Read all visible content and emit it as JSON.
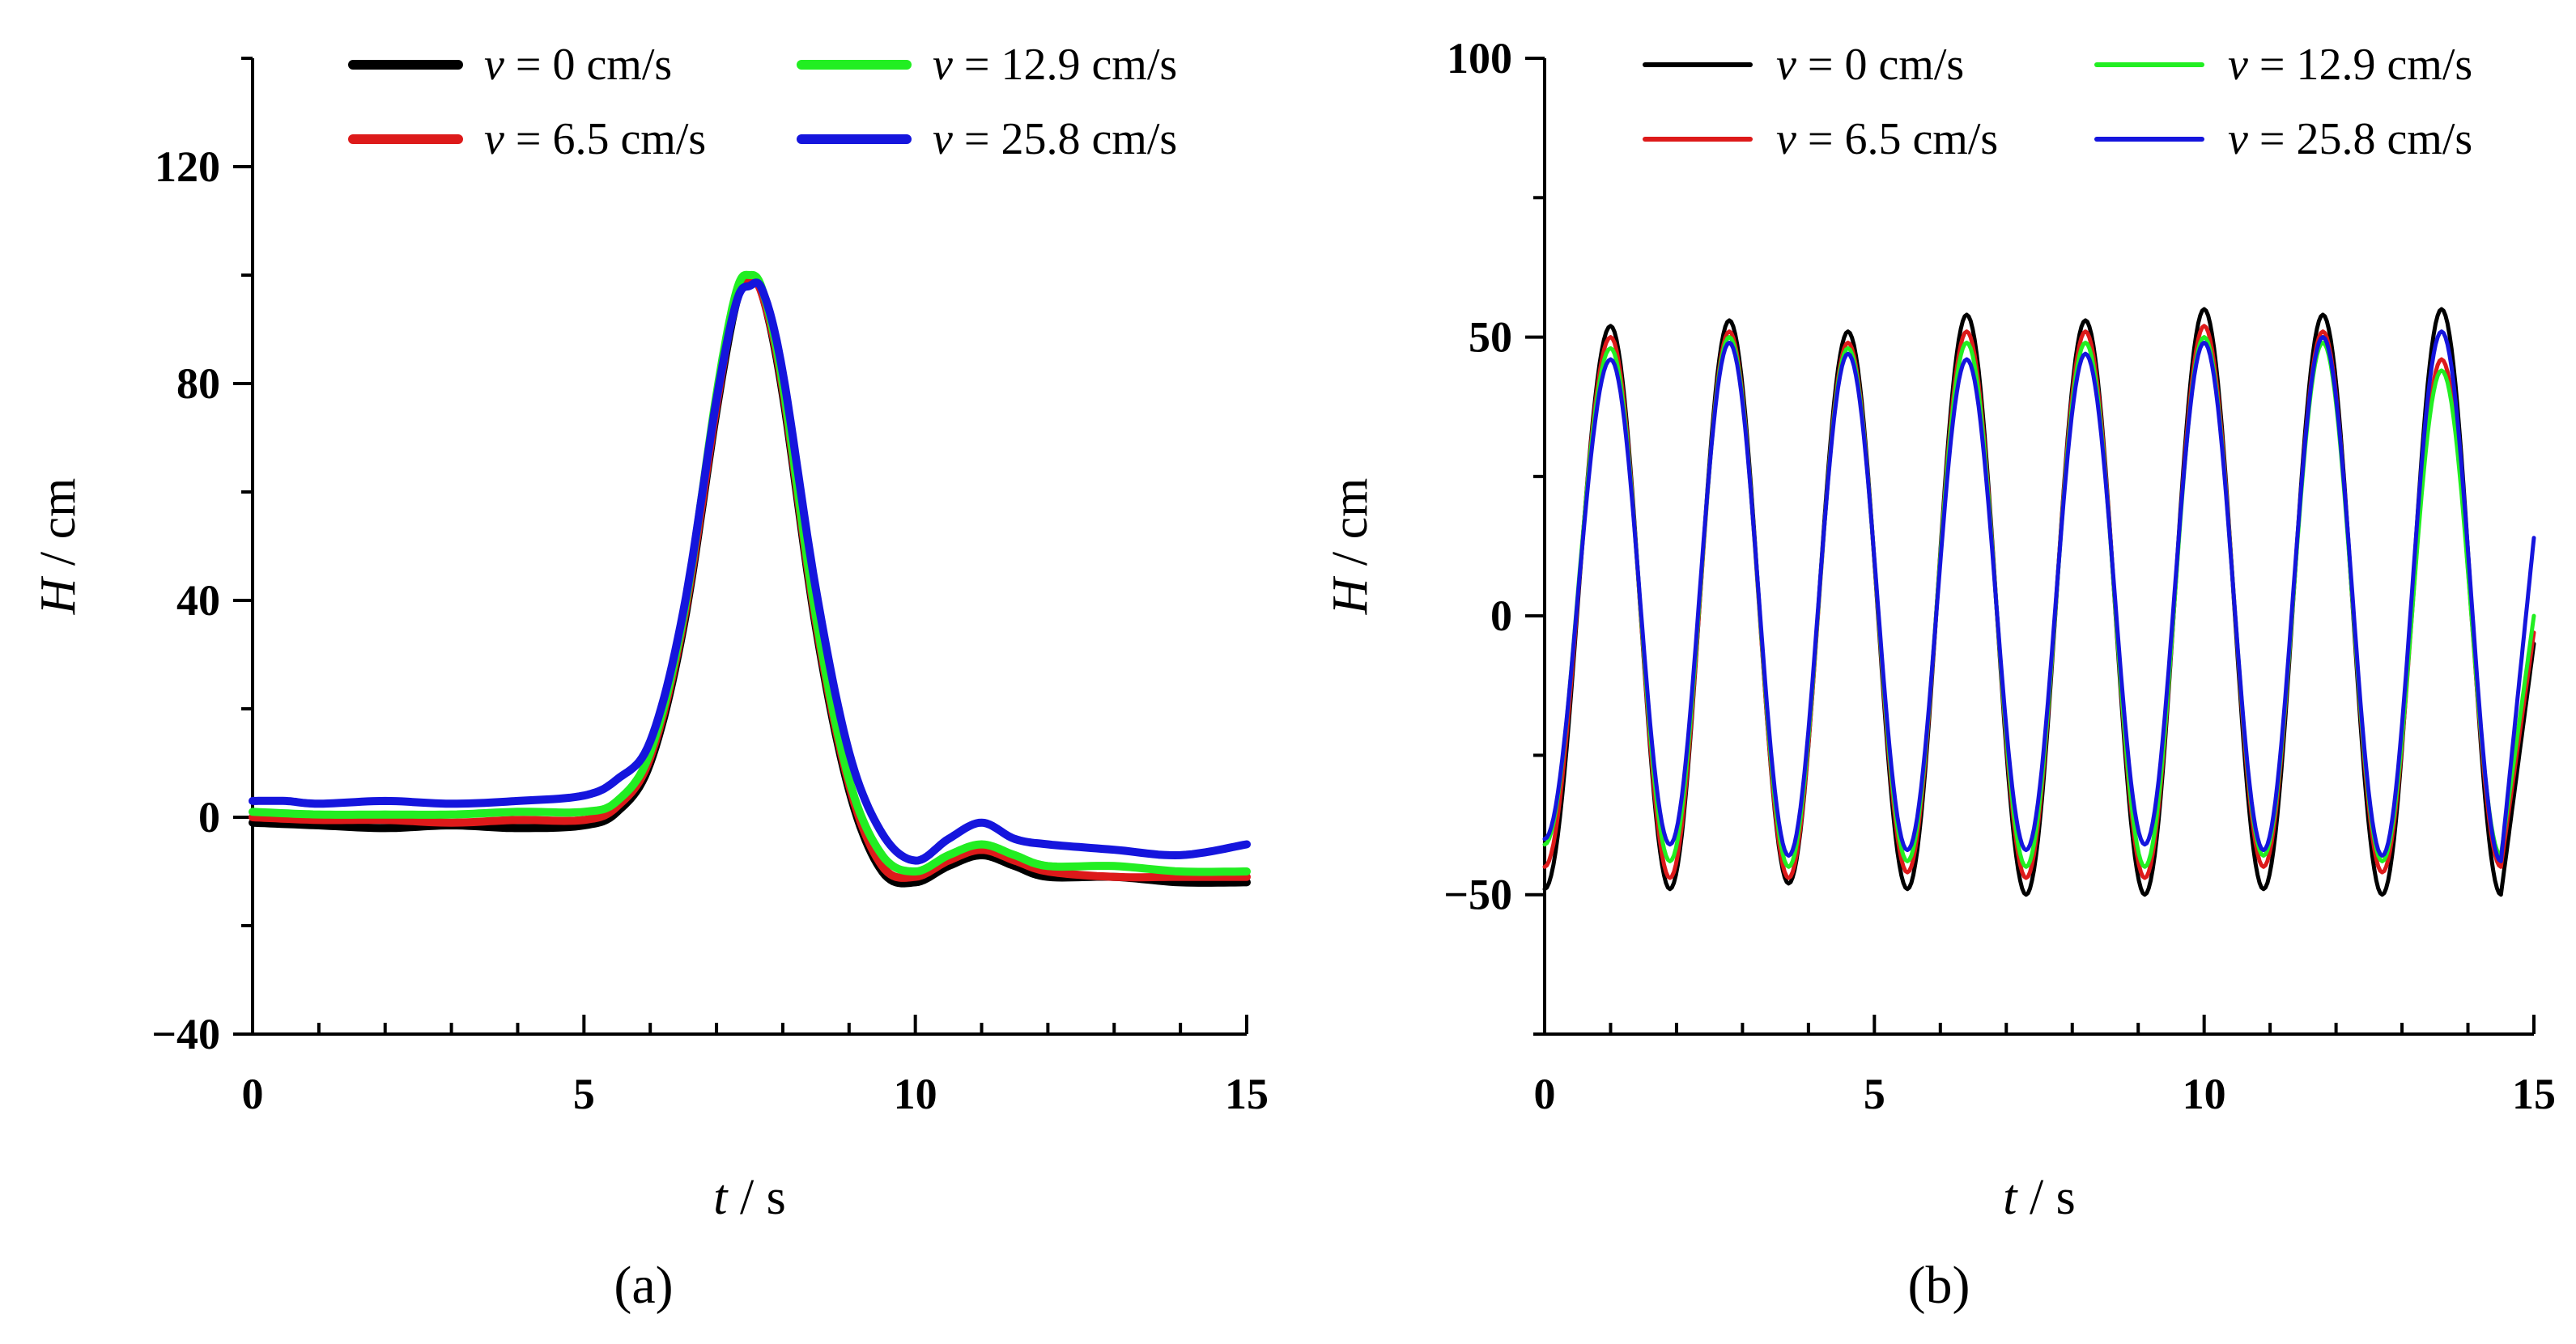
{
  "chart_data": [
    {
      "type": "line",
      "panel_label": "(a)",
      "xlabel": "t / s",
      "xlabel_var": "t",
      "xlabel_unit": "/ s",
      "ylabel": "H / cm",
      "ylabel_var": "H",
      "ylabel_unit": "/ cm",
      "xlim": [
        0,
        15
      ],
      "ylim": [
        -40,
        140
      ],
      "xticks": [
        0,
        5,
        10,
        15
      ],
      "xticklabels": [
        "0",
        "5",
        "10",
        "15"
      ],
      "yticks": [
        -40,
        0,
        40,
        80,
        120
      ],
      "yticklabels": [
        "−40",
        "0",
        "40",
        "80",
        "120"
      ],
      "grid": false,
      "legend_position": "top",
      "series": [
        {
          "name": "v = 0 cm/s",
          "label_var": "v",
          "label_val": "= 0 cm/s",
          "color": "#000000",
          "x": [
            0,
            1,
            2,
            3,
            4,
            5,
            5.5,
            6,
            6.5,
            7,
            7.3,
            7.5,
            7.7,
            8,
            8.5,
            9,
            9.5,
            10,
            10.5,
            11,
            11.5,
            12,
            13,
            14,
            15
          ],
          "y": [
            -1,
            -1.5,
            -2,
            -1.5,
            -2,
            -1.5,
            1,
            10,
            35,
            75,
            95,
            99,
            96,
            78,
            35,
            5,
            -10,
            -12,
            -9,
            -7,
            -9,
            -11,
            -11,
            -12,
            -12
          ]
        },
        {
          "name": "v = 6.5 cm/s",
          "label_var": "v",
          "label_val": "= 6.5 cm/s",
          "color": "#dd1a1a",
          "x": [
            0,
            1,
            2,
            3,
            4,
            5,
            5.5,
            6,
            6.5,
            7,
            7.3,
            7.5,
            7.7,
            8,
            8.5,
            9,
            9.5,
            10,
            10.5,
            11,
            11.5,
            12,
            13,
            14,
            15
          ],
          "y": [
            0,
            -0.5,
            -0.5,
            -1,
            -0.5,
            -0.5,
            2,
            11,
            36,
            76,
            96,
            99,
            96,
            79,
            36,
            6,
            -9,
            -11,
            -8,
            -6,
            -8,
            -10,
            -11,
            -11,
            -11
          ]
        },
        {
          "name": "v = 12.9 cm/s",
          "label_var": "v",
          "label_val": "= 12.9 cm/s",
          "color": "#22ee22",
          "x": [
            0,
            1,
            2,
            3,
            4,
            5,
            5.5,
            6,
            6.5,
            7,
            7.3,
            7.5,
            7.7,
            8,
            8.5,
            9,
            9.5,
            10,
            10.5,
            11,
            11.5,
            12,
            13,
            14,
            15
          ],
          "y": [
            1,
            0.5,
            0.5,
            0.5,
            1,
            1,
            3,
            12,
            37,
            78,
            97,
            100,
            97,
            80,
            37,
            7,
            -7,
            -10,
            -7,
            -5,
            -7,
            -9,
            -9,
            -10,
            -10
          ]
        },
        {
          "name": "v = 25.8 cm/s",
          "label_var": "v",
          "label_val": "= 25.8 cm/s",
          "color": "#1515dd",
          "x": [
            0,
            0.5,
            1,
            2,
            3,
            4,
            5,
            5.5,
            6,
            6.5,
            7,
            7.3,
            7.5,
            7.7,
            8,
            8.5,
            9,
            9.5,
            10,
            10.5,
            11,
            11.5,
            12,
            13,
            14,
            15
          ],
          "y": [
            3,
            3,
            2.5,
            3,
            2.5,
            3,
            4,
            7,
            14,
            38,
            77,
            95,
            98,
            97,
            82,
            42,
            12,
            -3,
            -8,
            -4,
            -1,
            -4,
            -5,
            -6,
            -7,
            -5
          ]
        }
      ]
    },
    {
      "type": "line",
      "panel_label": "(b)",
      "xlabel": "t / s",
      "xlabel_var": "t",
      "xlabel_unit": "/ s",
      "ylabel": "H / cm",
      "ylabel_var": "H",
      "ylabel_unit": "/ cm",
      "xlim": [
        0,
        15
      ],
      "ylim": [
        -75,
        100
      ],
      "xticks": [
        0,
        5,
        10,
        15
      ],
      "xticklabels": [
        "0",
        "5",
        "10",
        "15"
      ],
      "yticks": [
        -50,
        0,
        50,
        100
      ],
      "yticklabels": [
        "−50",
        "0",
        "50",
        "100"
      ],
      "grid": false,
      "legend_position": "top",
      "wave_period_s": 1.8,
      "series": [
        {
          "name": "v = 0 cm/s",
          "label_var": "v",
          "label_val": "= 0 cm/s",
          "color": "#000000",
          "peaks_t": [
            1.0,
            2.8,
            4.6,
            6.4,
            8.2,
            10.0,
            11.8,
            13.6
          ],
          "peaks_H": [
            52,
            53,
            51,
            54,
            53,
            55,
            54,
            55
          ],
          "troughs_t": [
            0,
            1.9,
            3.7,
            5.5,
            7.3,
            9.1,
            10.9,
            12.7,
            14.5
          ],
          "troughs_H": [
            -49,
            -49,
            -48,
            -49,
            -50,
            -50,
            -49,
            -50,
            -50
          ],
          "end_H": -5
        },
        {
          "name": "v = 6.5 cm/s",
          "label_var": "v",
          "label_val": "= 6.5 cm/s",
          "color": "#dd1a1a",
          "peaks_t": [
            1.0,
            2.8,
            4.6,
            6.4,
            8.2,
            10.0,
            11.8,
            13.6
          ],
          "peaks_H": [
            50,
            51,
            49,
            51,
            51,
            52,
            51,
            46
          ],
          "troughs_t": [
            0,
            1.9,
            3.7,
            5.5,
            7.3,
            9.1,
            10.9,
            12.7,
            14.5
          ],
          "troughs_H": [
            -45,
            -47,
            -47,
            -46,
            -47,
            -47,
            -45,
            -46,
            -45
          ],
          "end_H": -3
        },
        {
          "name": "v = 12.9 cm/s",
          "label_var": "v",
          "label_val": "= 12.9 cm/s",
          "color": "#22ee22",
          "peaks_t": [
            1.0,
            2.8,
            4.6,
            6.4,
            8.2,
            10.0,
            11.8,
            13.6
          ],
          "peaks_H": [
            48,
            50,
            48,
            49,
            49,
            50,
            49,
            44
          ],
          "troughs_t": [
            0,
            1.9,
            3.7,
            5.5,
            7.3,
            9.1,
            10.9,
            12.7,
            14.5
          ],
          "troughs_H": [
            -41,
            -44,
            -45,
            -44,
            -45,
            -45,
            -43,
            -44,
            -43
          ],
          "end_H": 0
        },
        {
          "name": "v = 25.8 cm/s",
          "label_var": "v",
          "label_val": "= 25.8 cm/s",
          "color": "#1515dd",
          "peaks_t": [
            1.0,
            2.8,
            4.6,
            6.4,
            8.2,
            10.0,
            11.8,
            13.6
          ],
          "peaks_H": [
            46,
            49,
            47,
            46,
            47,
            49,
            50,
            51
          ],
          "troughs_t": [
            0,
            1.9,
            3.7,
            5.5,
            7.3,
            9.1,
            10.9,
            12.7,
            14.5
          ],
          "troughs_H": [
            -40,
            -41,
            -43,
            -42,
            -42,
            -41,
            -42,
            -43,
            -44
          ],
          "end_H": 14
        }
      ]
    }
  ]
}
